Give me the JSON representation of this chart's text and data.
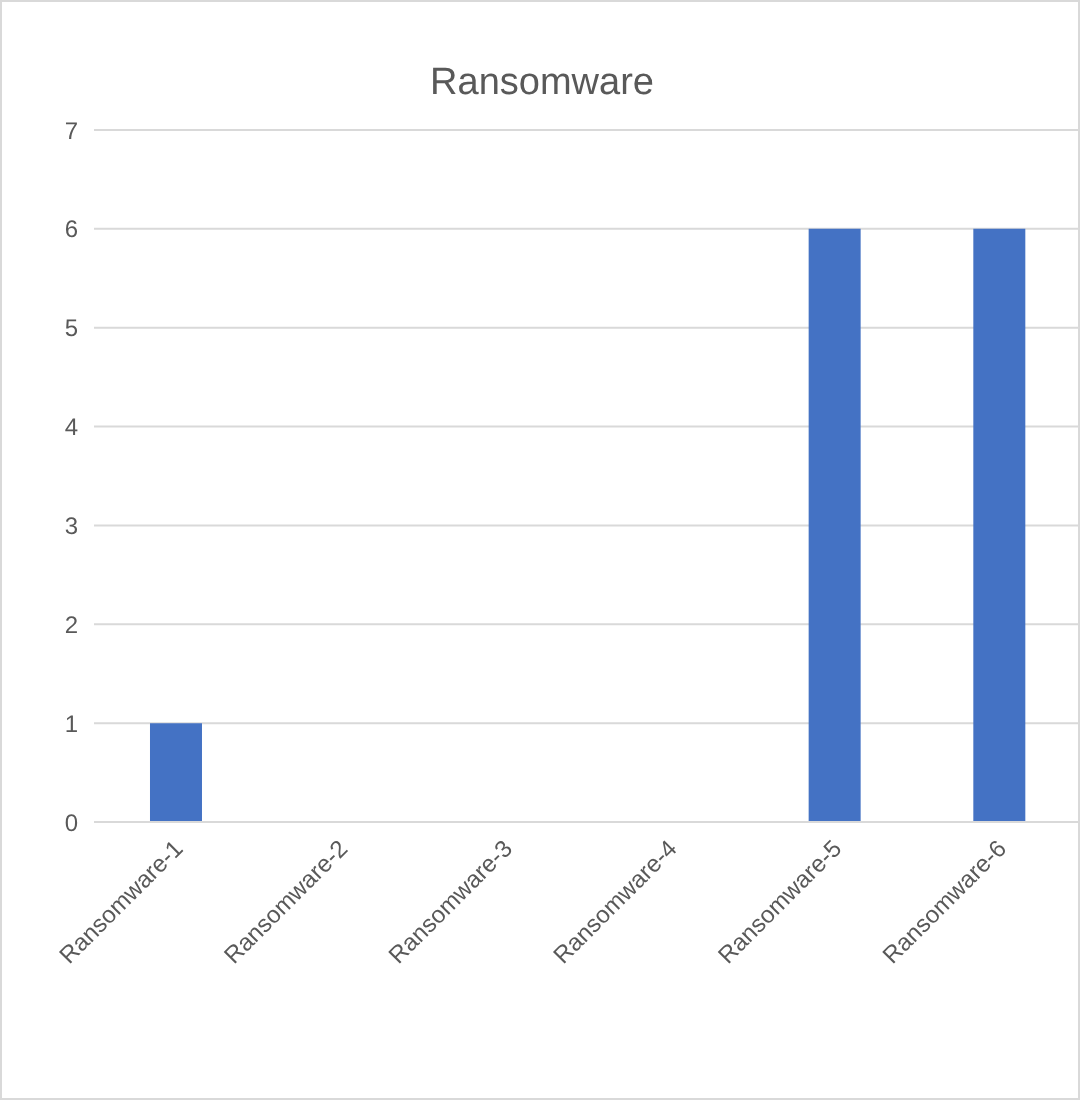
{
  "chart_data": {
    "type": "bar",
    "title": "Ransomware",
    "categories": [
      "Ransomware-1",
      "Ransomware-2",
      "Ransomware-3",
      "Ransomware-4",
      "Ransomware-5",
      "Ransomware-6"
    ],
    "values": [
      1,
      0,
      0,
      0,
      6,
      6
    ],
    "color": "#4472c4",
    "ylim": [
      0,
      7
    ],
    "yticks": [
      0,
      1,
      2,
      3,
      4,
      5,
      6,
      7
    ],
    "grid": "y"
  }
}
